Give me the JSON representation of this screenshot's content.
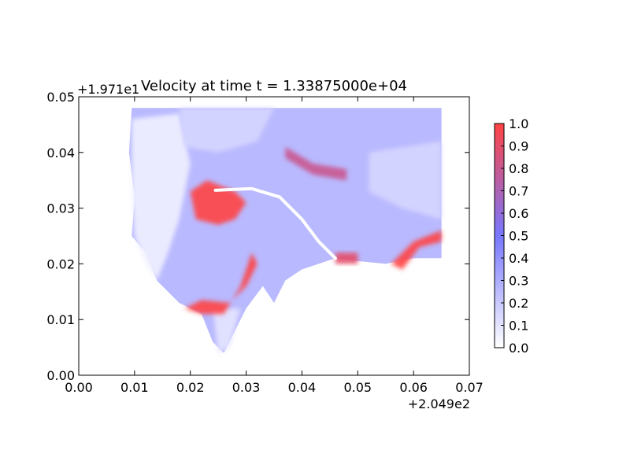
{
  "chart_data": {
    "type": "heatmap",
    "title": "Velocity at time t = 1.33875000e+04",
    "xlabel": "",
    "ylabel": "",
    "x_offset_label": "+2.049e2",
    "y_offset_label": "+1.971e1",
    "xlim": [
      0.0,
      0.07
    ],
    "ylim": [
      0.0,
      0.05
    ],
    "xticks": [
      "0.00",
      "0.01",
      "0.02",
      "0.03",
      "0.04",
      "0.05",
      "0.06",
      "0.07"
    ],
    "yticks": [
      "0.00",
      "0.01",
      "0.02",
      "0.03",
      "0.04",
      "0.05"
    ],
    "grid": false,
    "colorbar": {
      "vmin": 0.0,
      "vmax": 1.0,
      "ticks": [
        "0.0",
        "0.1",
        "0.2",
        "0.3",
        "0.4",
        "0.5",
        "0.6",
        "0.7",
        "0.8",
        "0.9",
        "1.0"
      ],
      "colors": {
        "low": "#ffffff",
        "mid": "#7777ff",
        "high": "#ff4444"
      }
    },
    "regions": [
      {
        "name": "domain",
        "value": 0.3,
        "points": [
          [
            0.0095,
            0.048
          ],
          [
            0.065,
            0.048
          ],
          [
            0.065,
            0.021
          ],
          [
            0.06,
            0.021
          ],
          [
            0.055,
            0.02
          ],
          [
            0.05,
            0.0205
          ],
          [
            0.046,
            0.021
          ],
          [
            0.04,
            0.019
          ],
          [
            0.037,
            0.017
          ],
          [
            0.035,
            0.013
          ],
          [
            0.033,
            0.016
          ],
          [
            0.03,
            0.012
          ],
          [
            0.028,
            0.008
          ],
          [
            0.026,
            0.004
          ],
          [
            0.024,
            0.006
          ],
          [
            0.022,
            0.011
          ],
          [
            0.018,
            0.013
          ],
          [
            0.014,
            0.017
          ],
          [
            0.012,
            0.022
          ],
          [
            0.0095,
            0.025
          ],
          [
            0.01,
            0.032
          ],
          [
            0.009,
            0.04
          ]
        ]
      },
      {
        "name": "low-west",
        "value": 0.05,
        "points": [
          [
            0.0095,
            0.046
          ],
          [
            0.018,
            0.047
          ],
          [
            0.02,
            0.038
          ],
          [
            0.018,
            0.028
          ],
          [
            0.016,
            0.022
          ],
          [
            0.014,
            0.017
          ],
          [
            0.012,
            0.02
          ],
          [
            0.01,
            0.025
          ],
          [
            0.0095,
            0.033
          ]
        ]
      },
      {
        "name": "low-north",
        "value": 0.15,
        "points": [
          [
            0.018,
            0.048
          ],
          [
            0.035,
            0.048
          ],
          [
            0.032,
            0.042
          ],
          [
            0.025,
            0.04
          ],
          [
            0.019,
            0.041
          ]
        ]
      },
      {
        "name": "low-east",
        "value": 0.15,
        "points": [
          [
            0.052,
            0.04
          ],
          [
            0.065,
            0.042
          ],
          [
            0.065,
            0.028
          ],
          [
            0.058,
            0.03
          ],
          [
            0.052,
            0.033
          ]
        ]
      },
      {
        "name": "low-south",
        "value": 0.1,
        "points": [
          [
            0.024,
            0.012
          ],
          [
            0.029,
            0.012
          ],
          [
            0.027,
            0.005
          ],
          [
            0.025,
            0.004
          ]
        ]
      },
      {
        "name": "high-center",
        "value": 1.0,
        "points": [
          [
            0.02,
            0.033
          ],
          [
            0.023,
            0.035
          ],
          [
            0.028,
            0.033
          ],
          [
            0.03,
            0.031
          ],
          [
            0.028,
            0.028
          ],
          [
            0.025,
            0.027
          ],
          [
            0.021,
            0.028
          ]
        ]
      },
      {
        "name": "high-south-shore",
        "value": 1.0,
        "points": [
          [
            0.019,
            0.012
          ],
          [
            0.022,
            0.0135
          ],
          [
            0.027,
            0.013
          ],
          [
            0.03,
            0.016
          ],
          [
            0.032,
            0.02
          ],
          [
            0.031,
            0.022
          ],
          [
            0.029,
            0.016
          ],
          [
            0.026,
            0.011
          ],
          [
            0.022,
            0.011
          ]
        ]
      },
      {
        "name": "high-north",
        "value": 0.8,
        "points": [
          [
            0.037,
            0.041
          ],
          [
            0.042,
            0.038
          ],
          [
            0.048,
            0.037
          ],
          [
            0.048,
            0.035
          ],
          [
            0.042,
            0.036
          ],
          [
            0.037,
            0.039
          ]
        ]
      },
      {
        "name": "high-east",
        "value": 1.0,
        "points": [
          [
            0.056,
            0.02
          ],
          [
            0.06,
            0.024
          ],
          [
            0.065,
            0.026
          ],
          [
            0.065,
            0.024
          ],
          [
            0.061,
            0.023
          ],
          [
            0.058,
            0.019
          ]
        ]
      },
      {
        "name": "high-mid",
        "value": 0.9,
        "points": [
          [
            0.046,
            0.022
          ],
          [
            0.05,
            0.022
          ],
          [
            0.05,
            0.02
          ],
          [
            0.046,
            0.02
          ]
        ]
      }
    ],
    "channel": {
      "value": 0.0,
      "points": [
        [
          0.0245,
          0.0332
        ],
        [
          0.031,
          0.0335
        ],
        [
          0.036,
          0.032
        ],
        [
          0.04,
          0.028
        ],
        [
          0.043,
          0.024
        ],
        [
          0.046,
          0.021
        ]
      ]
    }
  }
}
